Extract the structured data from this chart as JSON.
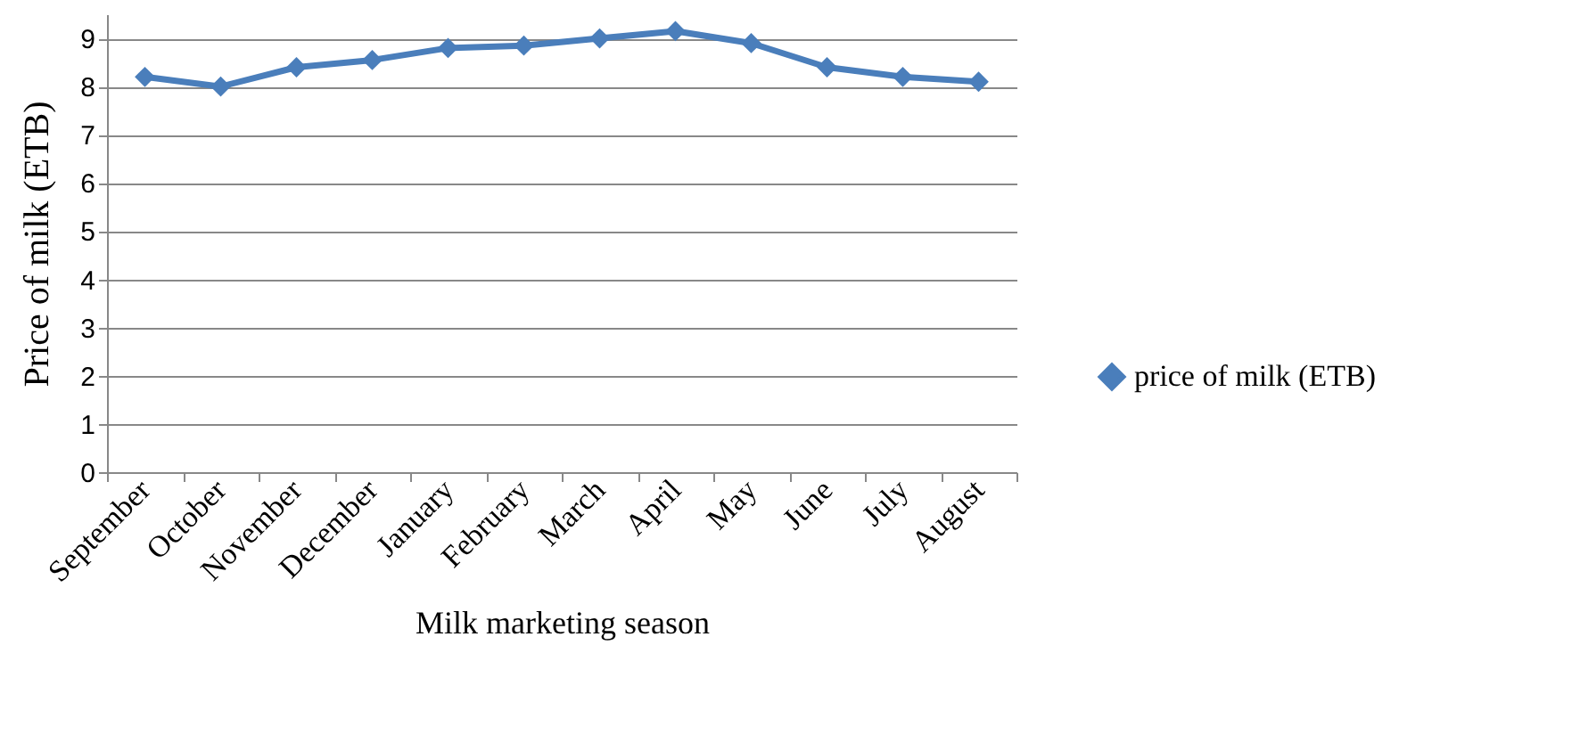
{
  "chart_data": {
    "type": "line",
    "xlabel": "Milk marketing season",
    "ylabel": "Price of milk (ETB)",
    "categories": [
      "September",
      "October",
      "November",
      "December",
      "January",
      "February",
      "March",
      "April",
      "May",
      "June",
      "July",
      "August"
    ],
    "series": [
      {
        "name": "price of milk (ETB)",
        "color": "#4a7ebb",
        "values": [
          8.2,
          8.0,
          8.4,
          8.55,
          8.8,
          8.85,
          9.0,
          9.15,
          8.9,
          8.4,
          8.2,
          8.1
        ]
      }
    ],
    "ylim": [
      0,
      9.5
    ],
    "yticks": [
      0,
      1,
      2,
      3,
      4,
      5,
      6,
      7,
      8,
      9
    ],
    "grid": "y",
    "legend": "right",
    "marker": "diamond",
    "line_style": "solid"
  }
}
